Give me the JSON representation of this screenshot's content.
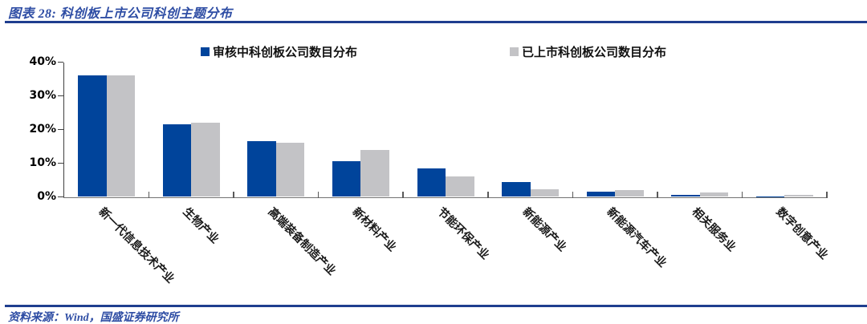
{
  "header": {
    "title": "图表 28:  科创板上市公司科创主题分布"
  },
  "footer": {
    "source": "资料来源：Wind，国盛证券研究所"
  },
  "colors": {
    "accent_navy": "#1F3E8F",
    "title_blue": "#2E4DA4",
    "bar_blue": "#00449B",
    "bar_gray": "#C3C3C6",
    "axis_dark": "#404040",
    "axis_gray": "#737373"
  },
  "chart_data": {
    "type": "bar",
    "title": "图表 28:  科创板上市公司科创主题分布",
    "categories": [
      "新一代信息技术产业",
      "生物产业",
      "高端装备制造产业",
      "新材料产业",
      "节能环保产业",
      "新能源产业",
      "新能源汽车产业",
      "相关服务业",
      "数字创意产业"
    ],
    "series": [
      {
        "name": "审核中科创板公司数目分布",
        "color": "#00449B",
        "values": [
          36,
          21.5,
          16.5,
          10.5,
          8.5,
          4.5,
          1.5,
          0.5,
          0.2
        ]
      },
      {
        "name": "已上市科创板公司数目分布",
        "color": "#C3C3C6",
        "values": [
          36,
          22,
          16,
          14,
          6,
          2.2,
          2,
          1.2,
          0.5
        ]
      }
    ],
    "xlabel": "",
    "ylabel": "",
    "ylim": [
      0,
      40
    ],
    "yticks": [
      0,
      10,
      20,
      30,
      40
    ],
    "ytick_labels": [
      "0%",
      "10%",
      "20%",
      "30%",
      "40%"
    ],
    "grid": false,
    "legend_position": "top"
  }
}
